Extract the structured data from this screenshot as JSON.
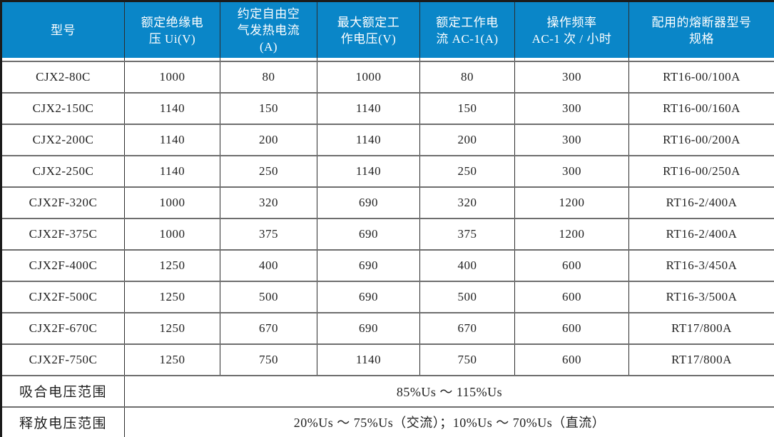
{
  "table": {
    "headers": [
      "型号",
      "额定绝缘电\n压 Ui(V)",
      "约定自由空\n气发热电流\n(A)",
      "最大额定工\n作电压(V)",
      "额定工作电\n流 AC-1(A)",
      "操作频率\nAC-1 次 / 小时",
      "配用的熔断器型号\n规格"
    ],
    "rows": [
      [
        "CJX2-80C",
        "1000",
        "80",
        "1000",
        "80",
        "300",
        "RT16-00/100A"
      ],
      [
        "CJX2-150C",
        "1140",
        "150",
        "1140",
        "150",
        "300",
        "RT16-00/160A"
      ],
      [
        "CJX2-200C",
        "1140",
        "200",
        "1140",
        "200",
        "300",
        "RT16-00/200A"
      ],
      [
        "CJX2-250C",
        "1140",
        "250",
        "1140",
        "250",
        "300",
        "RT16-00/250A"
      ],
      [
        "CJX2F-320C",
        "1000",
        "320",
        "690",
        "320",
        "1200",
        "RT16-2/400A"
      ],
      [
        "CJX2F-375C",
        "1000",
        "375",
        "690",
        "375",
        "1200",
        "RT16-2/400A"
      ],
      [
        "CJX2F-400C",
        "1250",
        "400",
        "690",
        "400",
        "600",
        "RT16-3/450A"
      ],
      [
        "CJX2F-500C",
        "1250",
        "500",
        "690",
        "500",
        "600",
        "RT16-3/500A"
      ],
      [
        "CJX2F-670C",
        "1250",
        "670",
        "690",
        "670",
        "600",
        "RT17/800A"
      ],
      [
        "CJX2F-750C",
        "1250",
        "750",
        "1140",
        "750",
        "600",
        "RT17/800A"
      ]
    ],
    "footer": [
      {
        "label": "吸合电压范围",
        "value": "85%Us ～ 115%Us"
      },
      {
        "label": "释放电压范围",
        "value": "20%Us ～ 75%Us（交流）；10%Us ～ 70%Us（直流）"
      }
    ]
  },
  "colors": {
    "header_bg": "#0a86c8",
    "header_text": "#ffffff",
    "body_text": "#1f1f1f",
    "border_vertical": "#2d2d2d",
    "border_horizontal": "#6e6e6e",
    "border_outer": "#1b1b1b"
  }
}
